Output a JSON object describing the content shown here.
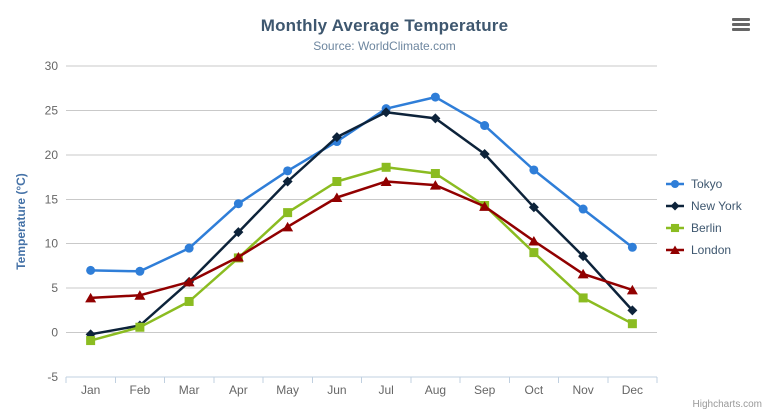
{
  "chart": {
    "credits": "Highcharts.com",
    "context_menu_icon": "hamburger-icon"
  },
  "theme": {
    "background": "#FFFFFF",
    "title_color": "#3E576F",
    "subtitle_color": "#6D869F",
    "axis_label_color": "#666666",
    "y_axis_title_color": "#4572A7",
    "legend_text_color": "#3E576F",
    "grid_color": "#C9C9C9",
    "axis_line_color": "#C0D0E0",
    "credits_color": "#999999",
    "menu_icon_color": "#666666"
  },
  "chart_data": {
    "type": "line",
    "title": "Monthly Average Temperature",
    "subtitle": "Source: WorldClimate.com",
    "categories": [
      "Jan",
      "Feb",
      "Mar",
      "Apr",
      "May",
      "Jun",
      "Jul",
      "Aug",
      "Sep",
      "Oct",
      "Nov",
      "Dec"
    ],
    "xlabel": "",
    "ylabel": "Temperature (°C)",
    "ylim": [
      -5,
      30
    ],
    "tick_interval": 5,
    "grid": true,
    "legend_position": "right",
    "series": [
      {
        "name": "Tokyo",
        "color": "#2F7ED8",
        "marker": "circle",
        "values": [
          7.0,
          6.9,
          9.5,
          14.5,
          18.2,
          21.5,
          25.2,
          26.5,
          23.3,
          18.3,
          13.9,
          9.6
        ]
      },
      {
        "name": "New York",
        "color": "#0D233A",
        "marker": "diamond",
        "values": [
          -0.2,
          0.8,
          5.7,
          11.3,
          17.0,
          22.0,
          24.8,
          24.1,
          20.1,
          14.1,
          8.6,
          2.5
        ]
      },
      {
        "name": "Berlin",
        "color": "#8BBC21",
        "marker": "square",
        "values": [
          -0.9,
          0.6,
          3.5,
          8.4,
          13.5,
          17.0,
          18.6,
          17.9,
          14.3,
          9.0,
          3.9,
          1.0
        ]
      },
      {
        "name": "London",
        "color": "#910000",
        "marker": "triangle",
        "values": [
          3.9,
          4.2,
          5.7,
          8.5,
          11.9,
          15.2,
          17.0,
          16.6,
          14.2,
          10.3,
          6.6,
          4.8
        ]
      }
    ]
  }
}
